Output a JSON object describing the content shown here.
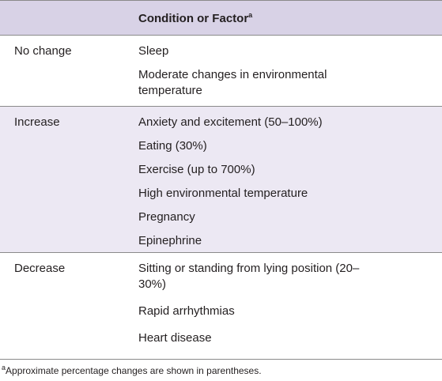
{
  "table": {
    "header": {
      "title": "Condition or Factor",
      "marker": "a"
    },
    "groups": [
      {
        "label": "No change",
        "items": [
          "Sleep",
          "Moderate changes in environmental temperature"
        ]
      },
      {
        "label": "Increase",
        "items": [
          "Anxiety and excitement (50–100%)",
          "Eating (30%)",
          "Exercise (up to 700%)",
          "High environmental temperature",
          "Pregnancy",
          "Epinephrine"
        ]
      },
      {
        "label": "Decrease",
        "items": [
          "Sitting or standing from lying position (20–30%)",
          "Rapid arrhythmias",
          "Heart disease"
        ]
      }
    ]
  },
  "footnote": {
    "marker": "a",
    "text": "Approximate percentage changes are shown in parentheses."
  }
}
